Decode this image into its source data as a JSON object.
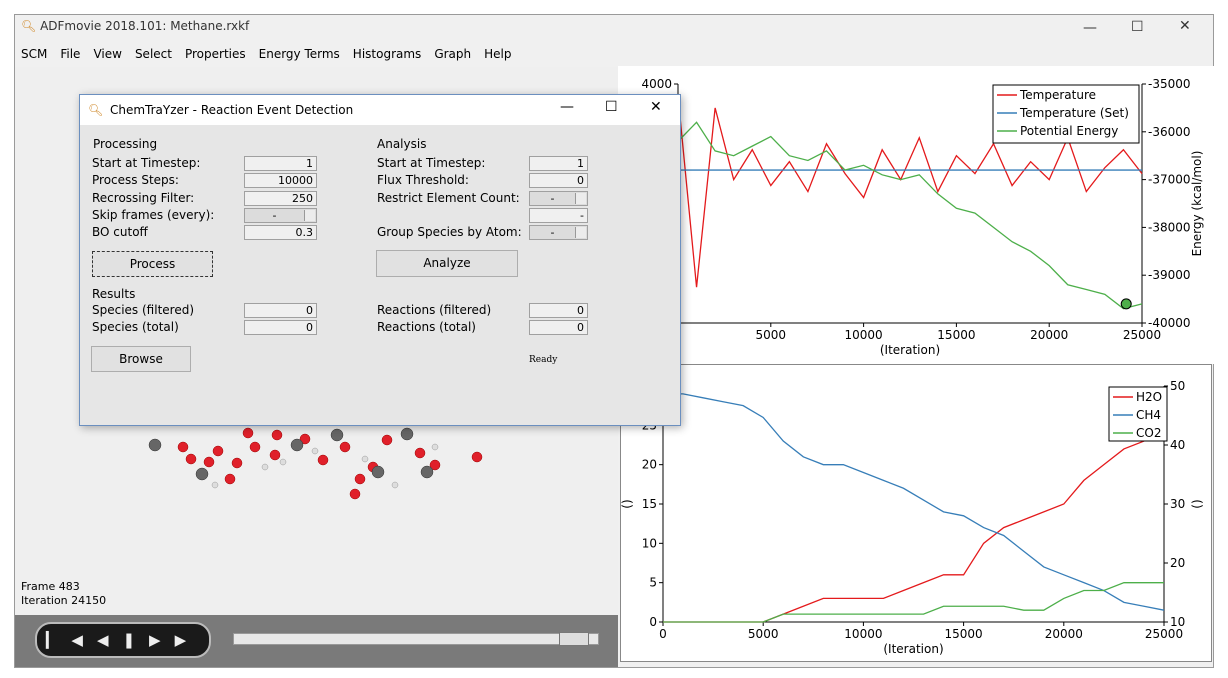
{
  "window": {
    "title": "ADFmovie 2018.101: Methane.rxkf",
    "menu": [
      "SCM",
      "File",
      "View",
      "Select",
      "Properties",
      "Energy Terms",
      "Histograms",
      "Graph",
      "Help"
    ]
  },
  "viewer": {
    "frame": "Frame 483",
    "iteration": "Iteration 24150"
  },
  "dialog": {
    "title": "ChemTraYzer - Reaction Event Detection",
    "processing": {
      "heading": "Processing",
      "fields": [
        {
          "label": "Start at Timestep:",
          "value": "1"
        },
        {
          "label": "Process Steps:",
          "value": "10000"
        },
        {
          "label": "Recrossing Filter:",
          "value": "250"
        },
        {
          "label": "Skip frames (every):",
          "value": "-"
        },
        {
          "label": "BO cutoff",
          "value": "0.3"
        }
      ],
      "button": "Process"
    },
    "results": {
      "heading": "Results",
      "fields": [
        {
          "label": "Species (filtered)",
          "value": "0"
        },
        {
          "label": "Species (total)",
          "value": "0"
        }
      ],
      "button": "Browse"
    },
    "analysis": {
      "heading": "Analysis",
      "fields": [
        {
          "label": "Start at Timestep:",
          "value": "1"
        },
        {
          "label": "Flux Threshold:",
          "value": "0"
        },
        {
          "label": "Restrict Element Count:",
          "value": "-"
        },
        {
          "label": null,
          "value": "-"
        },
        {
          "label": "Group Species by Atom:",
          "value": "-"
        }
      ],
      "button": "Analyze",
      "fields2": [
        {
          "label": "Reactions (filtered)",
          "value": "0"
        },
        {
          "label": "Reactions (total)",
          "value": "0"
        }
      ],
      "status": "Ready"
    }
  },
  "chart_data": [
    {
      "type": "line",
      "xlabel": "(Iteration)",
      "y2label": "Energy (kcal/mol)",
      "x": [
        0,
        1000,
        2000,
        3000,
        4000,
        5000,
        6000,
        7000,
        8000,
        9000,
        10000,
        11000,
        12000,
        13000,
        14000,
        15000,
        16000,
        17000,
        18000,
        19000,
        20000,
        21000,
        22000,
        23000,
        24000,
        25000
      ],
      "xlim": [
        0,
        25000
      ],
      "xticks": [
        5000,
        10000,
        15000,
        20000,
        25000
      ],
      "ylim": [
        0,
        4000
      ],
      "yticks": [
        4000
      ],
      "y2lim": [
        -40000,
        -35000
      ],
      "y2ticks": [
        -35000,
        -36000,
        -37000,
        -38000,
        -39000,
        -40000
      ],
      "legend": "upper right",
      "series": [
        {
          "name": "Temperature",
          "color": "#e41a1c",
          "values": [
            3800,
            600,
            3600,
            2400,
            2900,
            2300,
            2700,
            2200,
            3000,
            2500,
            2100,
            2900,
            2400,
            3100,
            2200,
            2800,
            2500,
            3000,
            2300,
            2700,
            2400,
            3100,
            2200,
            2600,
            2900,
            2500
          ]
        },
        {
          "name": "Temperature (Set)",
          "color": "#377eb8",
          "values": [
            2560,
            2560,
            2560,
            2560,
            2560,
            2560,
            2560,
            2560,
            2560,
            2560,
            2560,
            2560,
            2560,
            2560,
            2560,
            2560,
            2560,
            2560,
            2560,
            2560,
            2560,
            2560,
            2560,
            2560,
            2560,
            2560
          ]
        },
        {
          "name": "Potential Energy",
          "color": "#4daf4a",
          "axis": "y2",
          "values": [
            -36200,
            -35800,
            -36400,
            -36500,
            -36300,
            -36100,
            -36500,
            -36600,
            -36400,
            -36800,
            -36700,
            -36900,
            -37000,
            -36900,
            -37300,
            -37600,
            -37700,
            -38000,
            -38300,
            -38500,
            -38800,
            -39200,
            -39300,
            -39400,
            -39700,
            -39600
          ]
        }
      ],
      "marker": {
        "x": 24150,
        "y": -39600,
        "axis": "y2",
        "color": "#4daf4a"
      }
    },
    {
      "type": "line",
      "xlabel": "(Iteration)",
      "ylabel": "()",
      "y2label": "()",
      "x": [
        0,
        1000,
        2000,
        3000,
        4000,
        5000,
        6000,
        7000,
        8000,
        9000,
        10000,
        11000,
        12000,
        13000,
        14000,
        15000,
        16000,
        17000,
        18000,
        19000,
        20000,
        21000,
        22000,
        23000,
        24000,
        25000
      ],
      "xlim": [
        0,
        25000
      ],
      "xticks": [
        0,
        5000,
        10000,
        15000,
        20000,
        25000
      ],
      "ylim": [
        0,
        30
      ],
      "yticks": [
        0,
        5,
        10,
        15,
        20,
        25
      ],
      "y2lim": [
        10,
        50
      ],
      "y2ticks": [
        10,
        20,
        30,
        40,
        50
      ],
      "legend": "upper right",
      "series": [
        {
          "name": "H2O",
          "color": "#e41a1c",
          "values": [
            0,
            0,
            0,
            0,
            0,
            0,
            1,
            2,
            3,
            3,
            3,
            3,
            4,
            5,
            6,
            6,
            10,
            12,
            13,
            14,
            15,
            18,
            20,
            22,
            23,
            24
          ]
        },
        {
          "name": "CH4",
          "color": "#377eb8",
          "values": [
            29,
            29,
            28.5,
            28,
            27.5,
            26,
            23,
            21,
            20,
            20,
            19,
            18,
            17,
            15.5,
            14,
            13.5,
            12,
            11,
            9,
            7,
            6,
            5,
            4,
            2.5,
            2,
            1.5
          ]
        },
        {
          "name": "CO2",
          "color": "#4daf4a",
          "values": [
            0,
            0,
            0,
            0,
            0,
            0,
            1,
            1,
            1,
            1,
            1,
            1,
            1,
            1,
            2,
            2,
            2,
            2,
            1.5,
            1.5,
            3,
            4,
            4,
            5,
            5,
            5
          ]
        }
      ]
    }
  ]
}
